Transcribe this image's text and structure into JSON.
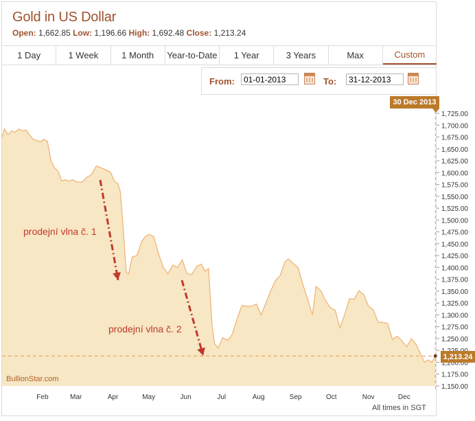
{
  "header": {
    "title": "Gold in US Dollar",
    "open_label": "Open:",
    "open_value": "1,662.85",
    "low_label": "Low:",
    "low_value": "1,196.66",
    "high_label": "High:",
    "high_value": "1,692.48",
    "close_label": "Close:",
    "close_value": "1,213.24"
  },
  "tabs": [
    "1 Day",
    "1 Week",
    "1 Month",
    "Year-to-Date",
    "1 Year",
    "3 Years",
    "Max",
    "Custom"
  ],
  "active_tab": "Custom",
  "range": {
    "from_label": "From:",
    "from_value": "01-01-2013",
    "to_label": "To:",
    "to_value": "31-12-2013",
    "calendar_icon": "calendar-icon"
  },
  "chart_data": {
    "type": "area",
    "x_ticks": [
      "Feb",
      "Mar",
      "Apr",
      "May",
      "Jun",
      "Jul",
      "Aug",
      "Sep",
      "Oct",
      "Nov",
      "Dec"
    ],
    "y_ticks": [
      "1,725.00",
      "1,700.00",
      "1,675.00",
      "1,650.00",
      "1,625.00",
      "1,600.00",
      "1,575.00",
      "1,550.00",
      "1,525.00",
      "1,500.00",
      "1,475.00",
      "1,450.00",
      "1,425.00",
      "1,400.00",
      "1,375.00",
      "1,350.00",
      "1,325.00",
      "1,300.00",
      "1,275.00",
      "1,250.00",
      "1,225.00",
      "1,200.00",
      "1,175.00",
      "1,150.00"
    ],
    "ylim": [
      1150,
      1725
    ],
    "xlim": [
      "2013-01-01",
      "2013-12-31"
    ],
    "grid": false,
    "last_date_label": "30 Dec 2013",
    "close_label": "1,213.24",
    "close_value": 1213.24,
    "colors": {
      "fill": "#f7e7c4",
      "line": "#f0b070",
      "accent": "#bb7a2a",
      "annotation": "#c0392b"
    },
    "series": [
      {
        "x": [
          "2013-01-01",
          "2013-01-03",
          "2013-01-06",
          "2013-01-09",
          "2013-01-12",
          "2013-01-15",
          "2013-01-18",
          "2013-01-21",
          "2013-01-24",
          "2013-01-27",
          "2013-01-30",
          "2013-02-02",
          "2013-02-05",
          "2013-02-08",
          "2013-02-11",
          "2013-02-14",
          "2013-02-17",
          "2013-02-20",
          "2013-02-23",
          "2013-02-26",
          "2013-03-01",
          "2013-03-05",
          "2013-03-09",
          "2013-03-13",
          "2013-03-17",
          "2013-03-21",
          "2013-03-25",
          "2013-03-29",
          "2013-04-02",
          "2013-04-05",
          "2013-04-08",
          "2013-04-10",
          "2013-04-12",
          "2013-04-15",
          "2013-04-17",
          "2013-04-20",
          "2013-04-24",
          "2013-04-28",
          "2013-05-01",
          "2013-05-04",
          "2013-05-08",
          "2013-05-12",
          "2013-05-16",
          "2013-05-20",
          "2013-05-24",
          "2013-05-28",
          "2013-06-01",
          "2013-06-05",
          "2013-06-09",
          "2013-06-13",
          "2013-06-17",
          "2013-06-20",
          "2013-06-23",
          "2013-06-26",
          "2013-06-28",
          "2013-07-01",
          "2013-07-05",
          "2013-07-09",
          "2013-07-13",
          "2013-07-17",
          "2013-07-21",
          "2013-07-25",
          "2013-07-29",
          "2013-08-02",
          "2013-08-06",
          "2013-08-10",
          "2013-08-14",
          "2013-08-18",
          "2013-08-22",
          "2013-08-26",
          "2013-08-29",
          "2013-09-02",
          "2013-09-06",
          "2013-09-10",
          "2013-09-14",
          "2013-09-18",
          "2013-09-21",
          "2013-09-25",
          "2013-09-29",
          "2013-10-03",
          "2013-10-07",
          "2013-10-11",
          "2013-10-15",
          "2013-10-19",
          "2013-10-23",
          "2013-10-27",
          "2013-10-31",
          "2013-11-04",
          "2013-11-08",
          "2013-11-12",
          "2013-11-16",
          "2013-11-20",
          "2013-11-24",
          "2013-11-28",
          "2013-12-02",
          "2013-12-06",
          "2013-12-10",
          "2013-12-14",
          "2013-12-18",
          "2013-12-21",
          "2013-12-24",
          "2013-12-27",
          "2013-12-30"
        ],
        "values": [
          1675,
          1692,
          1680,
          1688,
          1685,
          1692,
          1688,
          1690,
          1680,
          1670,
          1668,
          1665,
          1670,
          1666,
          1625,
          1610,
          1603,
          1582,
          1585,
          1582,
          1585,
          1580,
          1580,
          1590,
          1596,
          1614,
          1610,
          1606,
          1600,
          1582,
          1577,
          1560,
          1500,
          1390,
          1386,
          1422,
          1425,
          1455,
          1465,
          1470,
          1465,
          1430,
          1400,
          1387,
          1405,
          1400,
          1416,
          1387,
          1385,
          1402,
          1407,
          1392,
          1398,
          1275,
          1240,
          1230,
          1252,
          1246,
          1260,
          1293,
          1320,
          1318,
          1318,
          1323,
          1300,
          1325,
          1350,
          1372,
          1383,
          1412,
          1418,
          1408,
          1400,
          1364,
          1333,
          1300,
          1360,
          1351,
          1330,
          1315,
          1310,
          1273,
          1300,
          1334,
          1333,
          1351,
          1343,
          1318,
          1311,
          1285,
          1284,
          1282,
          1248,
          1255,
          1245,
          1233,
          1250,
          1237,
          1215,
          1200,
          1205,
          1200,
          1213
        ]
      }
    ]
  },
  "annotations": {
    "wave1": "prodejní vlna č. 1",
    "wave2": "prodejní vlna č. 2"
  },
  "footer": {
    "watermark": "BullionStar.com",
    "times_note": "All times in SGT"
  }
}
